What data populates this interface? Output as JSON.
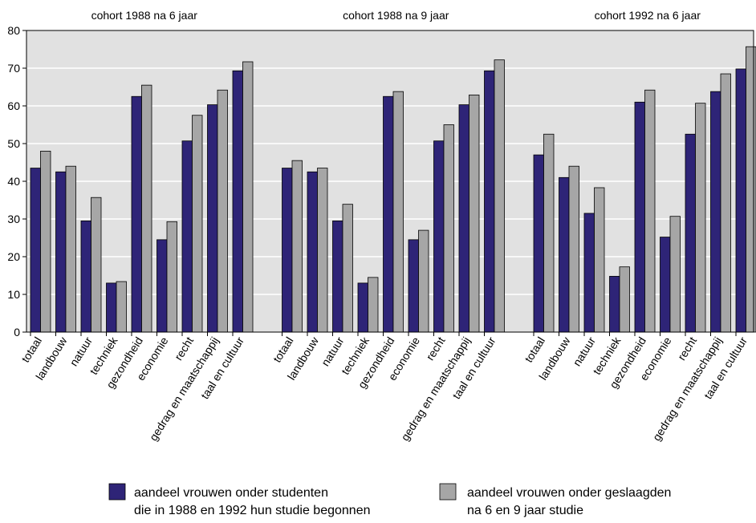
{
  "chart_data": {
    "type": "bar",
    "ylim": [
      0,
      80
    ],
    "yticks": [
      0,
      10,
      20,
      30,
      40,
      50,
      60,
      70,
      80
    ],
    "grid": true,
    "legend_position": "bottom",
    "categories": [
      "totaal",
      "landbouw",
      "natuur",
      "techniek",
      "gezondheid",
      "economie",
      "recht",
      "gedrag en maatschappij",
      "taal en cultuur"
    ],
    "series_colors": [
      "#2e2477",
      "#a6a6a6"
    ],
    "panels": [
      {
        "title": "cohort 1988 na 6 jaar",
        "series": [
          {
            "values": [
              43.5,
              42.5,
              29.5,
              13.0,
              62.5,
              24.5,
              50.7,
              60.3,
              69.3
            ]
          },
          {
            "values": [
              48.0,
              44.0,
              35.7,
              13.4,
              65.5,
              29.3,
              57.5,
              64.2,
              71.7
            ]
          }
        ]
      },
      {
        "title": "cohort 1988 na 9 jaar",
        "series": [
          {
            "values": [
              43.5,
              42.5,
              29.5,
              13.0,
              62.5,
              24.5,
              50.7,
              60.3,
              69.3
            ]
          },
          {
            "values": [
              45.5,
              43.5,
              33.9,
              14.5,
              63.8,
              27.0,
              55.0,
              62.9,
              72.2
            ]
          }
        ]
      },
      {
        "title": "cohort 1992 na 6 jaar",
        "series": [
          {
            "values": [
              47.0,
              41.0,
              31.5,
              14.8,
              61.0,
              25.2,
              52.5,
              63.8,
              69.8
            ]
          },
          {
            "values": [
              52.5,
              44.0,
              38.3,
              17.3,
              64.2,
              30.7,
              60.7,
              68.5,
              75.7
            ]
          }
        ]
      }
    ],
    "legend": [
      {
        "line1": "aandeel vrouwen onder studenten",
        "line2": "die in 1988 en 1992 hun studie begonnen"
      },
      {
        "line1": "aandeel vrouwen onder geslaagden",
        "line2": "na 6 en 9 jaar studie"
      }
    ]
  }
}
